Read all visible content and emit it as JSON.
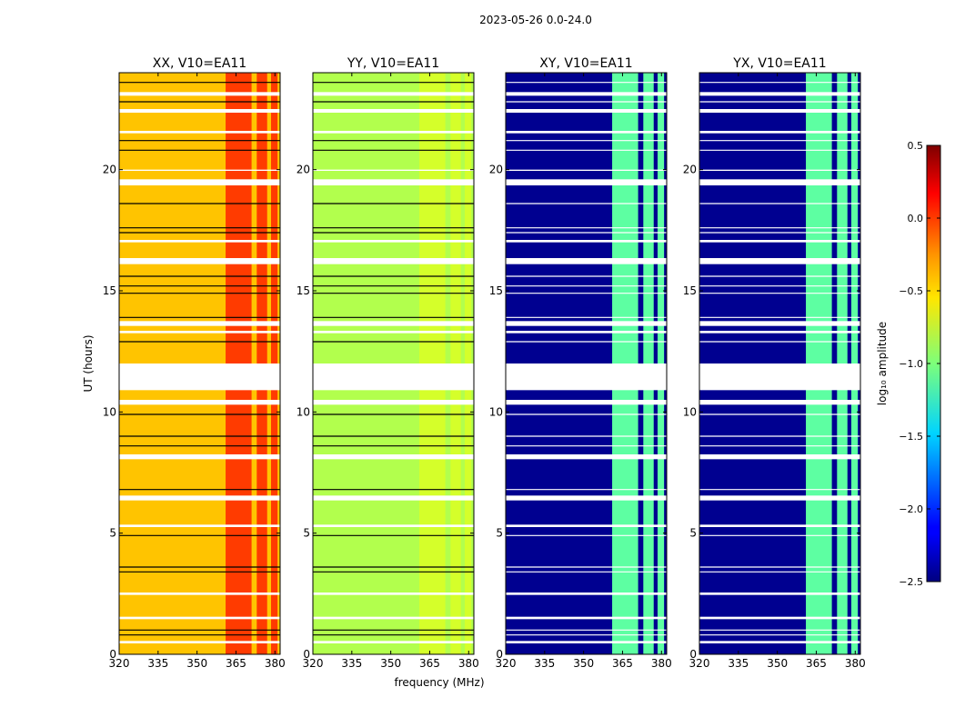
{
  "chart_data": {
    "type": "heatmap",
    "suptitle": "2023-05-26 0.0-24.0",
    "xlabel": "frequency (MHz)",
    "ylabel": "UT (hours)",
    "xlim": [
      320,
      382
    ],
    "ylim": [
      0,
      24
    ],
    "xticks": [
      "320",
      "335",
      "350",
      "365",
      "380"
    ],
    "yticks": [
      "0",
      "5",
      "10",
      "15",
      "20"
    ],
    "panels": [
      {
        "title": "XX, V10=EA11",
        "base_level": -0.45,
        "band_level": -0.05
      },
      {
        "title": "YY, V10=EA11",
        "base_level": -0.85,
        "band_level": -0.75
      },
      {
        "title": "XY, V10=EA11",
        "base_level": -2.45,
        "band_level": -1.1
      },
      {
        "title": "YX, V10=EA11",
        "base_level": -2.45,
        "band_level": -1.1
      }
    ],
    "colorbar": {
      "label": "log₁₀ amplitude",
      "range": [
        -2.5,
        0.5
      ],
      "ticks": [
        "0.5",
        "0.0",
        "−0.5",
        "−1.0",
        "−1.5",
        "−2.0",
        "−2.5"
      ]
    },
    "flag_gaps_hours": [
      [
        23.05,
        23.2
      ],
      [
        22.35,
        22.5
      ],
      [
        21.5,
        21.6
      ],
      [
        19.35,
        19.6
      ],
      [
        19.95,
        20.0
      ],
      [
        17.0,
        17.1
      ],
      [
        16.1,
        16.35
      ],
      [
        13.55,
        13.75
      ],
      [
        13.25,
        13.35
      ],
      [
        10.9,
        12.0
      ],
      [
        10.3,
        10.5
      ],
      [
        8.05,
        8.25
      ],
      [
        6.35,
        6.55
      ],
      [
        5.25,
        5.35
      ],
      [
        2.45,
        2.55
      ],
      [
        1.45,
        1.55
      ],
      [
        0.45,
        0.55
      ]
    ],
    "flag_lines_hours": [
      23.6,
      22.8,
      21.2,
      20.8,
      18.6,
      17.6,
      17.4,
      15.6,
      15.2,
      14.9,
      13.9,
      12.9,
      9.9,
      9.0,
      8.6,
      6.8,
      4.9,
      3.6,
      3.4,
      1.0,
      0.8
    ],
    "bright_band_mhz": [
      [
        361,
        371
      ],
      [
        373,
        377
      ],
      [
        378.5,
        381
      ]
    ]
  }
}
